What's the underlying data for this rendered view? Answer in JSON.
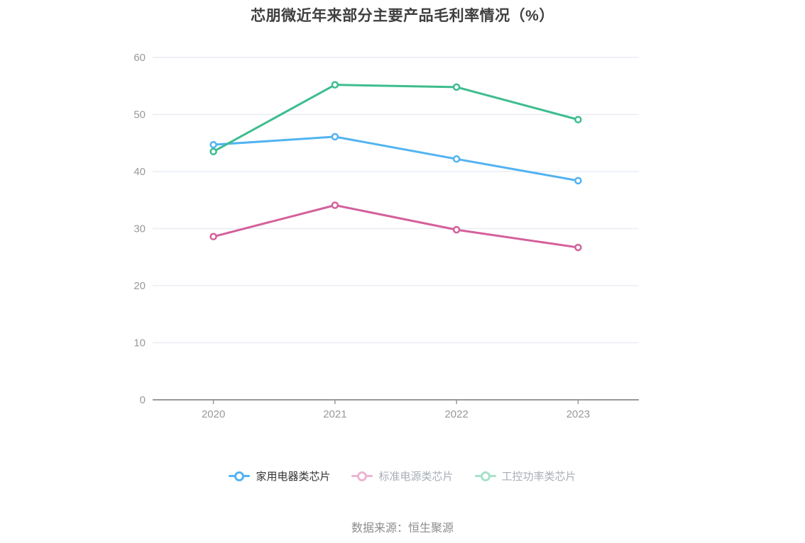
{
  "chart_data": {
    "type": "line",
    "title": "芯朋微近年来部分主要产品毛利率情况（%）",
    "categories": [
      "2020",
      "2021",
      "2022",
      "2023"
    ],
    "series": [
      {
        "name": "家用电器类芯片",
        "color": "#52b3f1",
        "muted": false,
        "values": [
          44.7,
          46.1,
          42.2,
          38.4
        ]
      },
      {
        "name": "标准电源类芯片",
        "color": "#d4609c",
        "muted": true,
        "values": [
          28.6,
          34.1,
          29.8,
          26.7
        ]
      },
      {
        "name": "工控功率类芯片",
        "color": "#3dbd8e",
        "muted": true,
        "values": [
          43.5,
          55.2,
          54.8,
          49.1
        ]
      }
    ],
    "ylim": [
      0,
      60
    ],
    "yticks": [
      0,
      10,
      20,
      30,
      40,
      50,
      60
    ],
    "grid": true,
    "legend_position": "bottom",
    "line_style": "solid, hollow circle markers"
  },
  "palette": {
    "background": "#ffffff",
    "title_text": "#3f3f3f",
    "axis_label_text": "#999999",
    "axis_line": "#999999",
    "gridline": "#e9edf4",
    "legend_text_active": "#333333",
    "legend_text_muted": "#a8aeb6",
    "footer_text": "#8c8c8c"
  },
  "footer": {
    "source_label": "数据来源：恒生聚源"
  }
}
